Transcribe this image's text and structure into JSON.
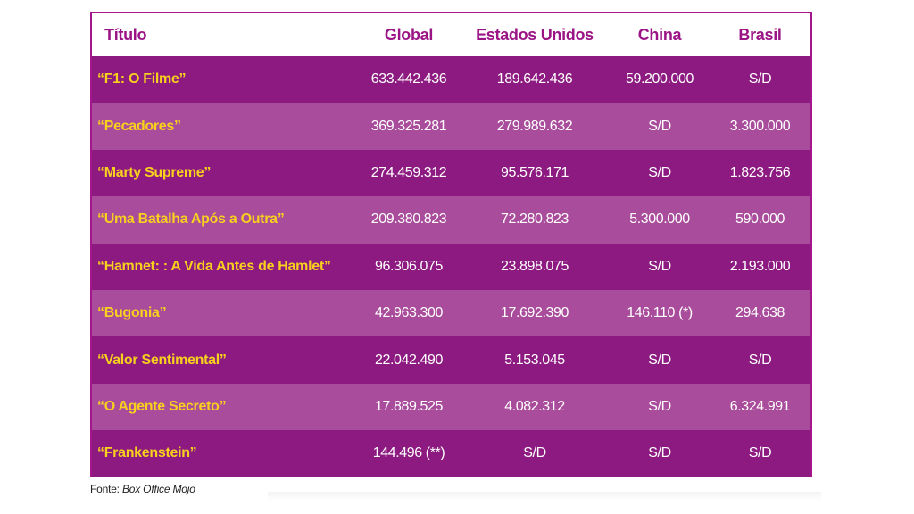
{
  "table": {
    "headers": {
      "title": "Título",
      "global": "Global",
      "us": "Estados Unidos",
      "china": "China",
      "brasil": "Brasil"
    },
    "rows": [
      {
        "title": "“F1: O Filme”",
        "global": "633.442.436",
        "us": "189.642.436",
        "china": "59.200.000",
        "brasil": "S/D"
      },
      {
        "title": "“Pecadores”",
        "global": "369.325.281",
        "us": "279.989.632",
        "china": "S/D",
        "brasil": "3.300.000"
      },
      {
        "title": "“Marty Supreme”",
        "global": "274.459.312",
        "us": "95.576.171",
        "china": "S/D",
        "brasil": "1.823.756"
      },
      {
        "title": "“Uma Batalha Após a Outra”",
        "global": "209.380.823",
        "us": "72.280.823",
        "china": "5.300.000",
        "brasil": "590.000"
      },
      {
        "title": "“Hamnet: : A Vida Antes de Hamlet”",
        "global": "96.306.075",
        "us": "23.898.075",
        "china": "S/D",
        "brasil": "2.193.000"
      },
      {
        "title": "“Bugonia”",
        "global": "42.963.300",
        "us": "17.692.390",
        "china": "146.110 (*)",
        "brasil": "294.638"
      },
      {
        "title": "“Valor Sentimental”",
        "global": "22.042.490",
        "us": "5.153.045",
        "china": "S/D",
        "brasil": "S/D"
      },
      {
        "title": "“O Agente Secreto”",
        "global": "17.889.525",
        "us": "4.082.312",
        "china": "S/D",
        "brasil": "6.324.991"
      },
      {
        "title": "“Frankenstein”",
        "global": "144.496 (**)",
        "us": "S/D",
        "china": "S/D",
        "brasil": "S/D"
      }
    ]
  },
  "source": {
    "label": "Fonte: ",
    "name": "Box Office Mojo"
  },
  "colors": {
    "header_text": "#9b1486",
    "row_dark": "#8c1a80",
    "row_light": "#a84c9b",
    "title_text": "#f7d11d",
    "value_text": "#ffffff"
  }
}
